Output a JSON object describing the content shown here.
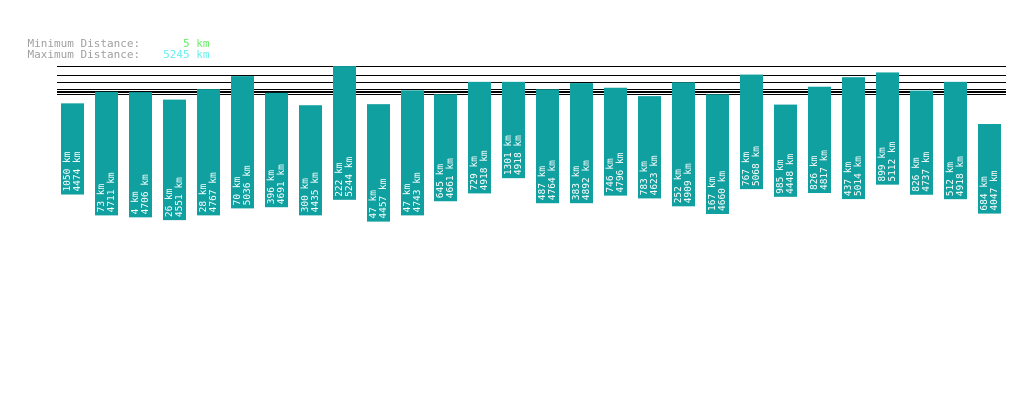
{
  "summary": {
    "min_label": "Minimum Distance:",
    "min_value": "5 km",
    "max_label": "Maximum Distance:",
    "max_value": "5245 km"
  },
  "colors": {
    "bar": "#11a0a0",
    "line": "#000000",
    "min_value": "#66ee66",
    "max_value": "#66eeee",
    "label_text": "#a0a0a0"
  },
  "chart_data": {
    "type": "bar",
    "title": "",
    "xlabel": "",
    "ylabel": "",
    "unit": "km",
    "reference_distances": [
      5245,
      5068,
      4918,
      4909,
      4765,
      4737,
      4706,
      4667
    ],
    "bars": [
      {
        "lower": 1050,
        "upper": 4474
      },
      {
        "lower": 73,
        "upper": 4711
      },
      {
        "lower": 4,
        "upper": 4706
      },
      {
        "lower": 26,
        "upper": 4551
      },
      {
        "lower": 28,
        "upper": 4767
      },
      {
        "lower": 70,
        "upper": 5036
      },
      {
        "lower": 396,
        "upper": 4691
      },
      {
        "lower": 300,
        "upper": 4435
      },
      {
        "lower": 222,
        "upper": 5244
      },
      {
        "lower": 47,
        "upper": 4457
      },
      {
        "lower": 47,
        "upper": 4743
      },
      {
        "lower": 645,
        "upper": 4661
      },
      {
        "lower": 729,
        "upper": 4918
      },
      {
        "lower": 1301,
        "upper": 4918
      },
      {
        "lower": 487,
        "upper": 4764
      },
      {
        "lower": 383,
        "upper": 4892
      },
      {
        "lower": 746,
        "upper": 4796
      },
      {
        "lower": 783,
        "upper": 4623
      },
      {
        "lower": 252,
        "upper": 4909
      },
      {
        "lower": 167,
        "upper": 4660
      },
      {
        "lower": 767,
        "upper": 5068
      },
      {
        "lower": 985,
        "upper": 4448
      },
      {
        "lower": 826,
        "upper": 4817
      },
      {
        "lower": 437,
        "upper": 5014
      },
      {
        "lower": 899,
        "upper": 5112
      },
      {
        "lower": 826,
        "upper": 4737
      },
      {
        "lower": 512,
        "upper": 4918
      },
      {
        "lower": 684,
        "upper": 4047
      }
    ]
  }
}
